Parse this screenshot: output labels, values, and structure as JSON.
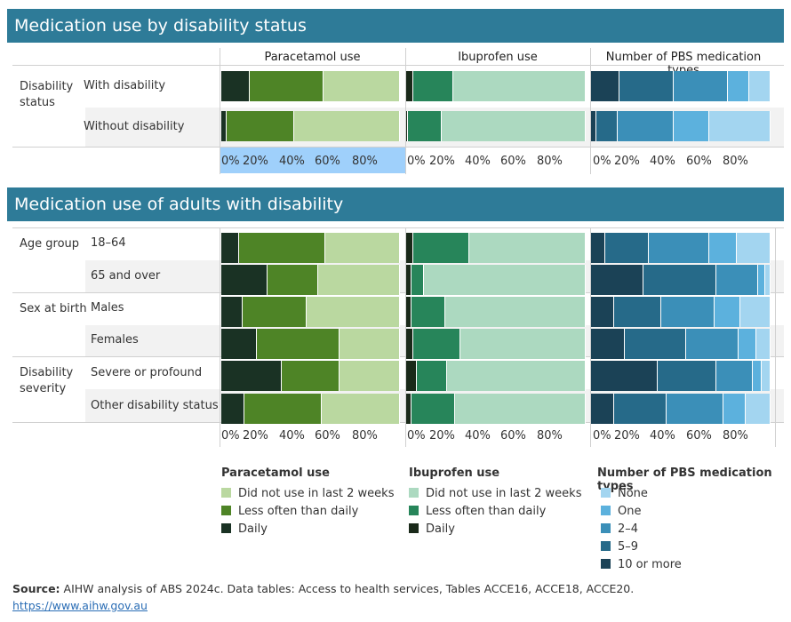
{
  "colors": {
    "title_bg": "#2e7b98",
    "para": [
      "#1a3224",
      "#4e8426",
      "#bad8a0"
    ],
    "ibu": [
      "#1a2a1a",
      "#27855a",
      "#acd9c0"
    ],
    "pbs": [
      "#1b4256",
      "#266a89",
      "#3b8fb8",
      "#5cb1dd",
      "#a3d5f0"
    ]
  },
  "section1": {
    "title": "Medication use by disability status",
    "group_label": "Disability status",
    "rows": [
      "With disability",
      "Without disability"
    ]
  },
  "section2": {
    "title": "Medication use of adults with disability",
    "groups": [
      {
        "label": "Age group",
        "rows": [
          "18–64",
          "65 and over"
        ]
      },
      {
        "label": "Sex at birth",
        "rows": [
          "Males",
          "Females"
        ]
      },
      {
        "label": "Disability severity",
        "rows": [
          "Severe or profound",
          "Other disability status"
        ]
      }
    ]
  },
  "column_headers": [
    "Paracetamol use",
    "Ibuprofen use",
    "Number of PBS medication types"
  ],
  "axis_ticks": [
    "0%",
    "20%",
    "40%",
    "60%",
    "80%"
  ],
  "legend": {
    "paracetamol": {
      "title": "Paracetamol use",
      "items": [
        "Did not use in last 2 weeks",
        "Less often  than daily",
        "Daily"
      ]
    },
    "ibuprofen": {
      "title": "Ibuprofen use",
      "items": [
        "Did not use in last 2 weeks",
        "Less often than daily",
        "Daily"
      ]
    },
    "pbs": {
      "title": "Number of PBS medication types",
      "items": [
        "None",
        "One",
        "2–4",
        "5–9",
        "10 or more"
      ]
    }
  },
  "source": {
    "label": "Source:",
    "text": " AIHW analysis of ABS 2024c. Data tables: Access to health services, Tables ACCE16, ACCE18, ACCE20.",
    "url": "https://www.aihw.gov.au"
  },
  "chart_data": [
    {
      "type": "bar",
      "orientation": "horizontal",
      "stacked": true,
      "title": "Paracetamol use",
      "categories": [
        "With disability",
        "Without disability",
        "18–64",
        "65 and over",
        "Males",
        "Females",
        "Severe or profound",
        "Other disability status"
      ],
      "series": [
        {
          "name": "Daily",
          "values": [
            16,
            3,
            10,
            26,
            12,
            20,
            34,
            13
          ]
        },
        {
          "name": "Less often  than daily",
          "values": [
            41,
            38,
            48,
            28,
            36,
            46,
            32,
            43
          ]
        },
        {
          "name": "Did not use in last 2 weeks",
          "values": [
            43,
            59,
            42,
            46,
            52,
            34,
            34,
            44
          ]
        }
      ],
      "xlim": [
        0,
        100
      ]
    },
    {
      "type": "bar",
      "orientation": "horizontal",
      "stacked": true,
      "title": "Ibuprofen use",
      "categories": [
        "With disability",
        "Without disability",
        "18–64",
        "65 and over",
        "Males",
        "Females",
        "Severe or profound",
        "Other disability status"
      ],
      "series": [
        {
          "name": "Daily",
          "values": [
            4,
            1,
            4,
            3,
            3,
            4,
            6,
            3
          ]
        },
        {
          "name": "Less often than daily",
          "values": [
            22,
            19,
            31,
            7,
            19,
            26,
            17,
            24
          ]
        },
        {
          "name": "Did not use in last 2 weeks",
          "values": [
            74,
            80,
            65,
            90,
            78,
            70,
            77,
            73
          ]
        }
      ],
      "xlim": [
        0,
        100
      ]
    },
    {
      "type": "bar",
      "orientation": "horizontal",
      "stacked": true,
      "title": "Number of PBS medication types",
      "categories": [
        "With disability",
        "Without disability",
        "18–64",
        "65 and over",
        "Males",
        "Females",
        "Severe or profound",
        "Other disability status"
      ],
      "series": [
        {
          "name": "10 or more",
          "values": [
            16,
            3,
            8,
            29,
            13,
            19,
            37,
            13
          ]
        },
        {
          "name": "5–9",
          "values": [
            30,
            12,
            24,
            41,
            26,
            34,
            33,
            29
          ]
        },
        {
          "name": "2–4",
          "values": [
            30,
            31,
            34,
            23,
            30,
            29,
            20,
            32
          ]
        },
        {
          "name": "One",
          "values": [
            12,
            20,
            15,
            4,
            14,
            10,
            5,
            12
          ]
        },
        {
          "name": "None",
          "values": [
            12,
            34,
            19,
            3,
            17,
            8,
            5,
            14
          ]
        }
      ],
      "xlim": [
        0,
        100
      ]
    }
  ]
}
